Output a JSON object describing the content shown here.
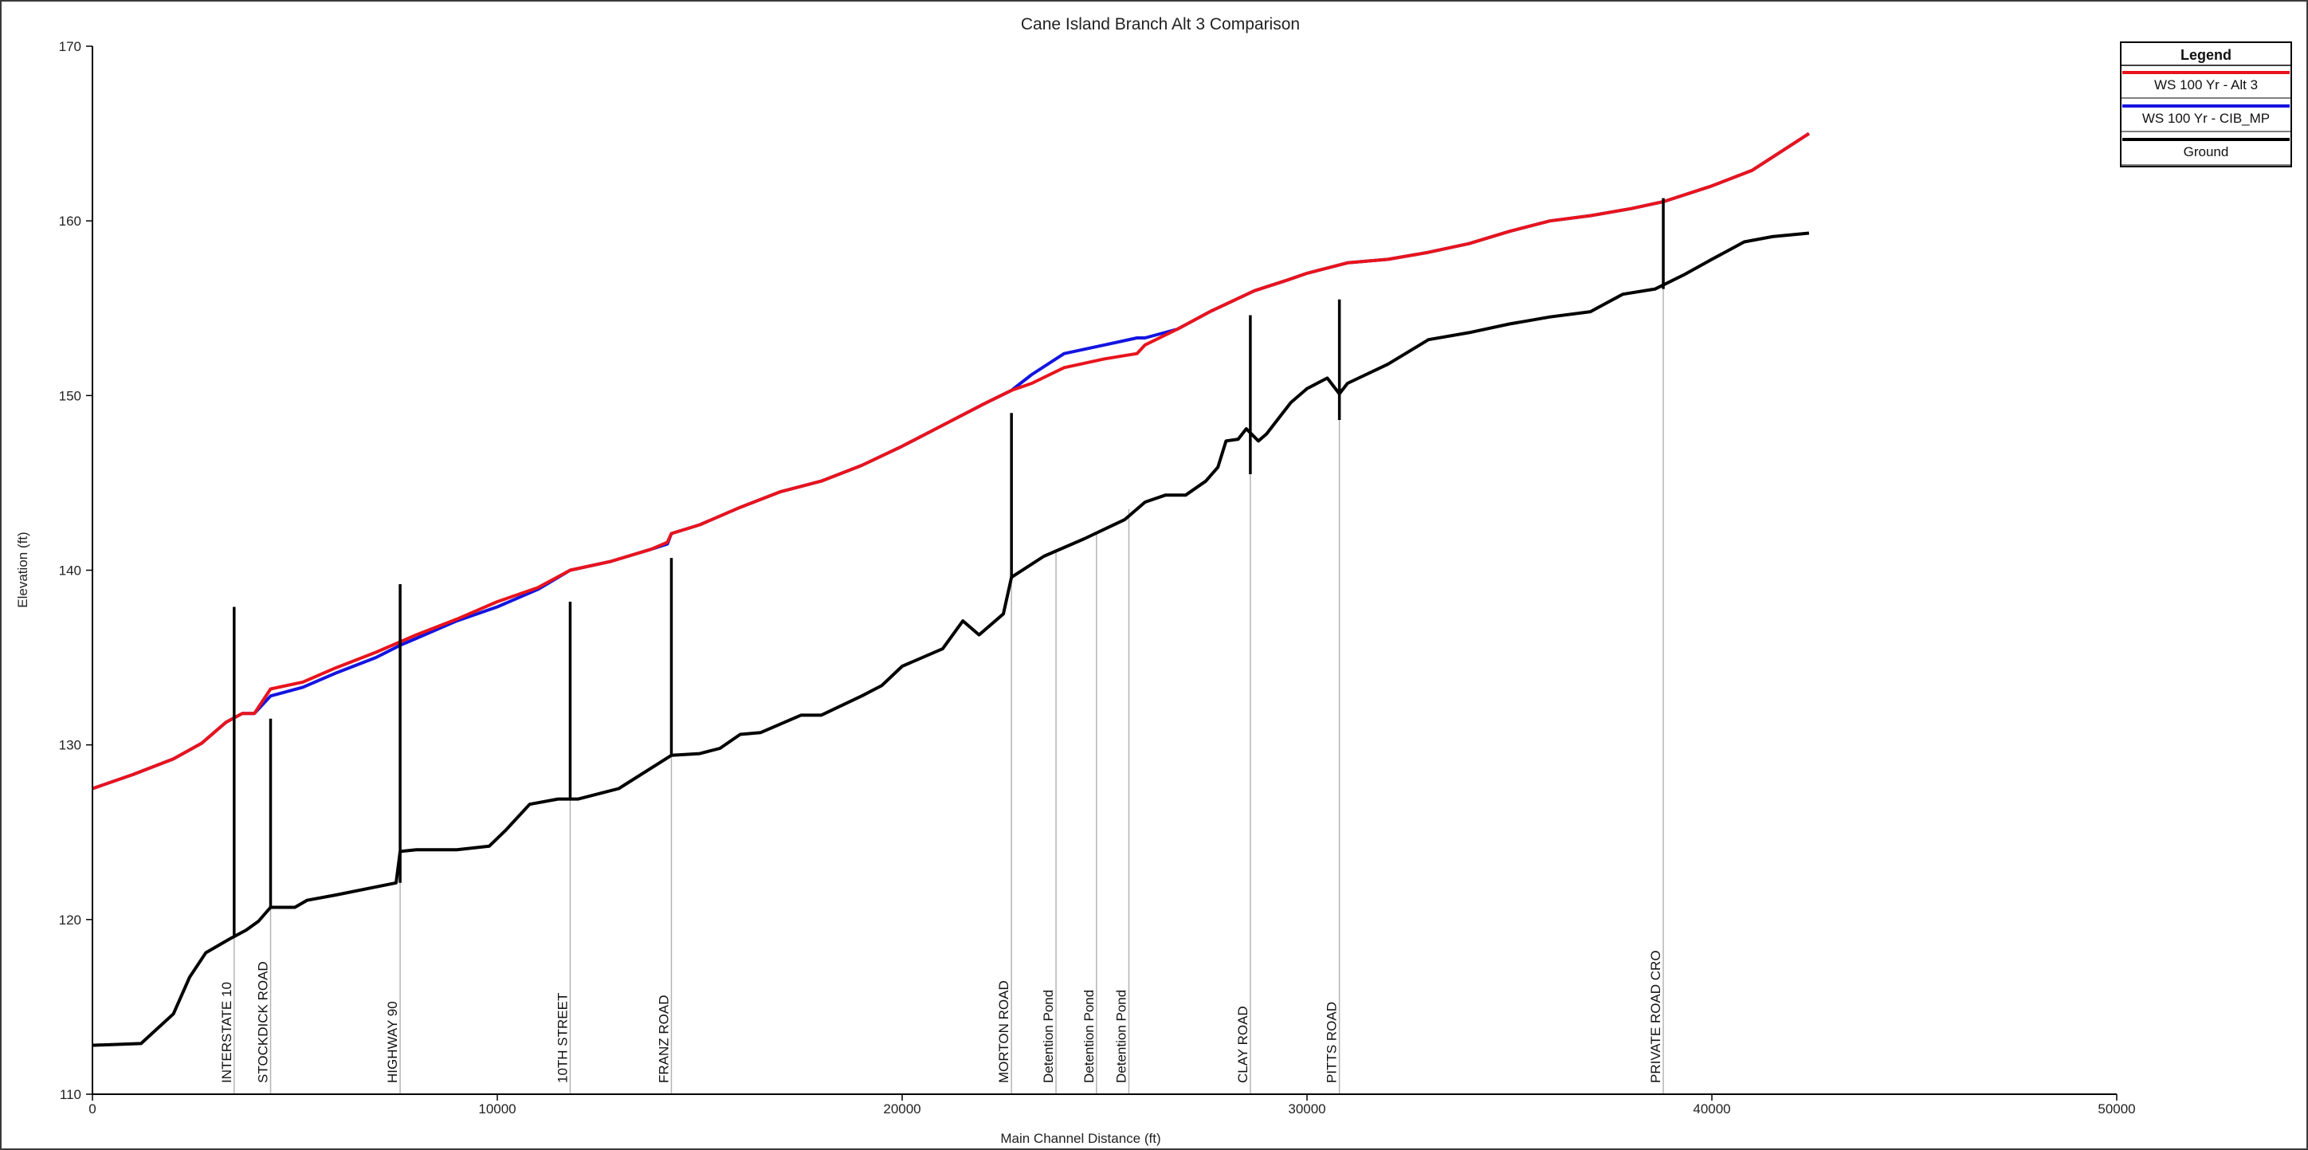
{
  "chart_data": {
    "type": "line",
    "title": "Cane Island Branch Alt 3 Comparison",
    "xlabel": "Main Channel Distance (ft)",
    "ylabel": "Elevation (ft)",
    "xlim": [
      0,
      50000
    ],
    "ylim": [
      110,
      170
    ],
    "x_ticks": [
      0,
      10000,
      20000,
      30000,
      40000,
      50000
    ],
    "y_ticks": [
      110,
      120,
      130,
      140,
      150,
      160,
      170
    ],
    "grid": false,
    "legend": {
      "title": "Legend",
      "position": "top-right",
      "entries": [
        {
          "name": "WS 100 Yr - Alt 3",
          "color": "#e8141c"
        },
        {
          "name": "WS 100 Yr - CIB_MP",
          "color": "#1414e0"
        },
        {
          "name": "Ground",
          "color": "#000000"
        }
      ]
    },
    "series": [
      {
        "name": "WS 100 Yr - Alt 3",
        "color": "#e8141c",
        "points": [
          [
            0,
            127.5
          ],
          [
            1000,
            128.3
          ],
          [
            2000,
            129.2
          ],
          [
            2700,
            130.1
          ],
          [
            3300,
            131.3
          ],
          [
            3700,
            131.8
          ],
          [
            4000,
            131.8
          ],
          [
            4400,
            133.2
          ],
          [
            5200,
            133.6
          ],
          [
            6000,
            134.4
          ],
          [
            7000,
            135.3
          ],
          [
            7600,
            135.9
          ],
          [
            8000,
            136.3
          ],
          [
            9000,
            137.2
          ],
          [
            10000,
            138.2
          ],
          [
            11000,
            139.0
          ],
          [
            11800,
            140.0
          ],
          [
            12800,
            140.5
          ],
          [
            13800,
            141.2
          ],
          [
            14200,
            141.6
          ],
          [
            14300,
            142.1
          ],
          [
            15000,
            142.6
          ],
          [
            16000,
            143.6
          ],
          [
            17000,
            144.5
          ],
          [
            18000,
            145.1
          ],
          [
            19000,
            146.0
          ],
          [
            20000,
            147.1
          ],
          [
            21000,
            148.3
          ],
          [
            22000,
            149.5
          ],
          [
            22700,
            150.3
          ],
          [
            23200,
            150.7
          ],
          [
            24000,
            151.6
          ],
          [
            25000,
            152.1
          ],
          [
            25800,
            152.4
          ],
          [
            26000,
            152.9
          ],
          [
            26800,
            153.8
          ],
          [
            27600,
            154.8
          ],
          [
            28700,
            156.0
          ],
          [
            29500,
            156.6
          ],
          [
            30000,
            157.0
          ],
          [
            31000,
            157.6
          ],
          [
            32000,
            157.8
          ],
          [
            33000,
            158.2
          ],
          [
            34000,
            158.7
          ],
          [
            35000,
            159.4
          ],
          [
            36000,
            160.0
          ],
          [
            37000,
            160.3
          ],
          [
            38000,
            160.7
          ],
          [
            38800,
            161.1
          ],
          [
            40000,
            162.0
          ],
          [
            41000,
            162.9
          ],
          [
            42400,
            165.0
          ]
        ]
      },
      {
        "name": "WS 100 Yr - CIB_MP",
        "color": "#1414e0",
        "points": [
          [
            0,
            127.5
          ],
          [
            1000,
            128.3
          ],
          [
            2000,
            129.2
          ],
          [
            2700,
            130.1
          ],
          [
            3300,
            131.3
          ],
          [
            3700,
            131.8
          ],
          [
            4000,
            131.8
          ],
          [
            4400,
            132.8
          ],
          [
            5200,
            133.3
          ],
          [
            6000,
            134.1
          ],
          [
            7000,
            135.0
          ],
          [
            7600,
            135.7
          ],
          [
            8000,
            136.1
          ],
          [
            9000,
            137.1
          ],
          [
            10000,
            137.9
          ],
          [
            11000,
            138.9
          ],
          [
            11800,
            140.0
          ],
          [
            12800,
            140.5
          ],
          [
            13800,
            141.2
          ],
          [
            14200,
            141.5
          ],
          [
            14300,
            142.1
          ],
          [
            15000,
            142.6
          ],
          [
            16000,
            143.6
          ],
          [
            17000,
            144.5
          ],
          [
            18000,
            145.1
          ],
          [
            19000,
            146.0
          ],
          [
            20000,
            147.1
          ],
          [
            21000,
            148.3
          ],
          [
            22000,
            149.5
          ],
          [
            22700,
            150.3
          ],
          [
            23200,
            151.2
          ],
          [
            24000,
            152.4
          ],
          [
            25000,
            152.9
          ],
          [
            25800,
            153.3
          ],
          [
            26000,
            153.3
          ],
          [
            26800,
            153.8
          ],
          [
            27600,
            154.8
          ],
          [
            28700,
            156.0
          ],
          [
            29500,
            156.6
          ],
          [
            30000,
            157.0
          ],
          [
            31000,
            157.6
          ],
          [
            32000,
            157.8
          ],
          [
            33000,
            158.2
          ],
          [
            34000,
            158.7
          ],
          [
            35000,
            159.4
          ],
          [
            36000,
            160.0
          ],
          [
            37000,
            160.3
          ],
          [
            38000,
            160.7
          ],
          [
            38800,
            161.1
          ],
          [
            40000,
            162.0
          ],
          [
            41000,
            162.9
          ],
          [
            42400,
            165.0
          ]
        ]
      },
      {
        "name": "Ground",
        "color": "#000000",
        "points": [
          [
            0,
            112.8
          ],
          [
            1200,
            112.9
          ],
          [
            2000,
            114.6
          ],
          [
            2400,
            116.7
          ],
          [
            2800,
            118.1
          ],
          [
            3400,
            118.9
          ],
          [
            3800,
            119.4
          ],
          [
            4100,
            119.9
          ],
          [
            4400,
            120.7
          ],
          [
            5000,
            120.7
          ],
          [
            5300,
            121.1
          ],
          [
            6000,
            121.4
          ],
          [
            7500,
            122.1
          ],
          [
            7600,
            123.9
          ],
          [
            8000,
            124.0
          ],
          [
            9000,
            124.0
          ],
          [
            9800,
            124.2
          ],
          [
            10200,
            125.1
          ],
          [
            10800,
            126.6
          ],
          [
            11500,
            126.9
          ],
          [
            12000,
            126.9
          ],
          [
            13000,
            127.5
          ],
          [
            14300,
            129.4
          ],
          [
            15000,
            129.5
          ],
          [
            15500,
            129.8
          ],
          [
            16000,
            130.6
          ],
          [
            16500,
            130.7
          ],
          [
            17500,
            131.7
          ],
          [
            18000,
            131.7
          ],
          [
            19000,
            132.8
          ],
          [
            19500,
            133.4
          ],
          [
            20000,
            134.5
          ],
          [
            21000,
            135.5
          ],
          [
            21500,
            137.1
          ],
          [
            21900,
            136.3
          ],
          [
            22500,
            137.5
          ],
          [
            22700,
            139.6
          ],
          [
            23500,
            140.8
          ],
          [
            24500,
            141.8
          ],
          [
            25500,
            142.9
          ],
          [
            26000,
            143.9
          ],
          [
            26500,
            144.3
          ],
          [
            27000,
            144.3
          ],
          [
            27500,
            145.1
          ],
          [
            27800,
            145.9
          ],
          [
            28000,
            147.4
          ],
          [
            28300,
            147.5
          ],
          [
            28500,
            148.1
          ],
          [
            28800,
            147.4
          ],
          [
            29000,
            147.8
          ],
          [
            29600,
            149.6
          ],
          [
            30000,
            150.4
          ],
          [
            30500,
            151.0
          ],
          [
            30800,
            150.1
          ],
          [
            31000,
            150.7
          ],
          [
            32000,
            151.8
          ],
          [
            33000,
            153.2
          ],
          [
            34000,
            153.6
          ],
          [
            35000,
            154.1
          ],
          [
            36000,
            154.5
          ],
          [
            37000,
            154.8
          ],
          [
            37800,
            155.8
          ],
          [
            38600,
            156.1
          ],
          [
            39300,
            156.9
          ],
          [
            40000,
            157.8
          ],
          [
            40800,
            158.8
          ],
          [
            41500,
            159.1
          ],
          [
            42400,
            159.3
          ]
        ]
      }
    ],
    "structures": [
      {
        "label": "INTERSTATE 10",
        "x": 3500,
        "top": 137.9,
        "bottom": 119.1
      },
      {
        "label": "STOCKDICK ROAD",
        "x": 4400,
        "top": 131.5,
        "bottom": 120.6
      },
      {
        "label": "HIGHWAY 90",
        "x": 7600,
        "top": 139.2,
        "bottom": 122.1
      },
      {
        "label": "10TH STREET",
        "x": 11800,
        "top": 138.2,
        "bottom": 126.9
      },
      {
        "label": "FRANZ ROAD",
        "x": 14300,
        "top": 140.7,
        "bottom": 129.4
      },
      {
        "label": "MORTON ROAD",
        "x": 22700,
        "top": 149.0,
        "bottom": 139.6
      },
      {
        "label": "Detention Pond",
        "x": 23800,
        "top": 141.2,
        "bottom": 141.2
      },
      {
        "label": "Detention Pond",
        "x": 24800,
        "top": 142.2,
        "bottom": 142.2
      },
      {
        "label": "Detention Pond",
        "x": 25600,
        "top": 143.5,
        "bottom": 143.5
      },
      {
        "label": "CLAY ROAD",
        "x": 28600,
        "top": 154.6,
        "bottom": 145.5
      },
      {
        "label": "PITTS ROAD",
        "x": 30800,
        "top": 155.5,
        "bottom": 148.6
      },
      {
        "label": "PRIVATE ROAD CRO",
        "x": 38800,
        "top": 161.3,
        "bottom": 156.1
      }
    ]
  }
}
